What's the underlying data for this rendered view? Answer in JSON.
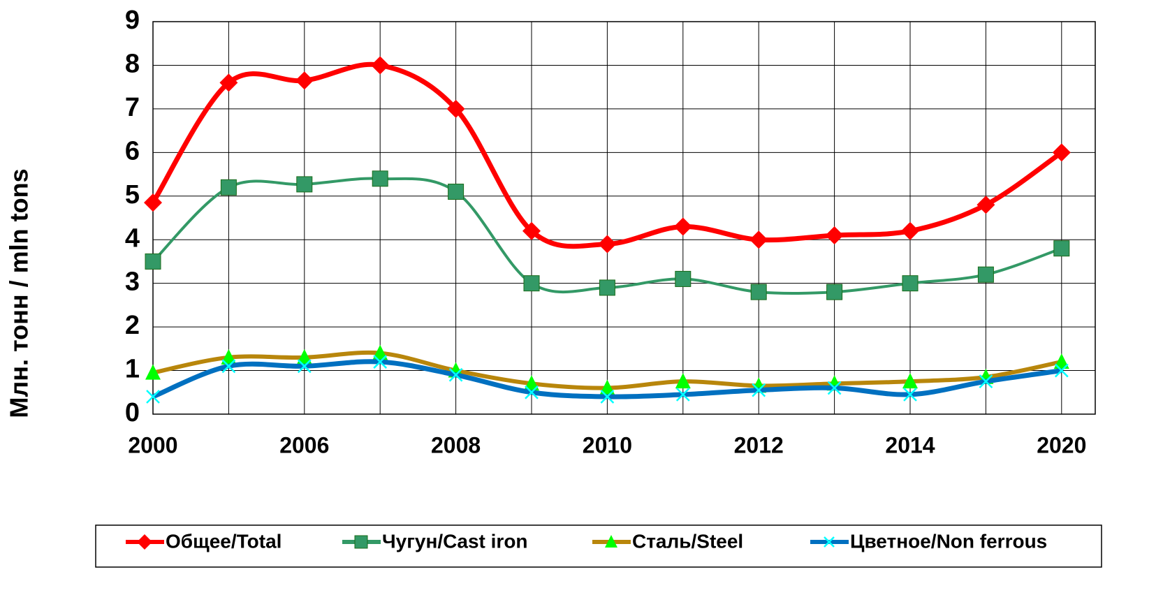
{
  "chart_data": {
    "type": "line",
    "y_label": "Млн. тонн / mln tons",
    "categories": [
      "2000",
      null,
      "2006",
      null,
      "2008",
      null,
      "2010",
      null,
      "2012",
      null,
      "2014",
      null,
      "2020"
    ],
    "series": [
      {
        "name": "Общее/Total",
        "color": "#ff0000",
        "marker": "diamond",
        "values": [
          4.85,
          7.6,
          7.65,
          8.0,
          7.0,
          4.2,
          3.9,
          4.3,
          4.0,
          4.1,
          4.2,
          4.8,
          6.0
        ]
      },
      {
        "name": "Чугун/Cast iron",
        "color": "#339966",
        "marker": "square",
        "values": [
          3.5,
          5.2,
          5.27,
          5.4,
          5.1,
          3.0,
          2.9,
          3.1,
          2.8,
          2.8,
          3.0,
          3.2,
          3.8
        ]
      },
      {
        "name": "Сталь/Steel",
        "color": "#b8860b",
        "marker": "triangle",
        "values": [
          0.95,
          1.3,
          1.3,
          1.4,
          1.0,
          0.7,
          0.6,
          0.75,
          0.65,
          0.7,
          0.75,
          0.85,
          1.2
        ]
      },
      {
        "name": "Цветное/Non ferrous",
        "color": "#0070c0",
        "marker": "x",
        "values": [
          0.4,
          1.1,
          1.1,
          1.2,
          0.9,
          0.5,
          0.4,
          0.45,
          0.55,
          0.6,
          0.45,
          0.75,
          1.0
        ]
      }
    ],
    "ylim": [
      0,
      9
    ],
    "yticks": [
      0,
      1,
      2,
      3,
      4,
      5,
      6,
      7,
      8,
      9
    ],
    "grid": true,
    "legend": "bottom"
  }
}
